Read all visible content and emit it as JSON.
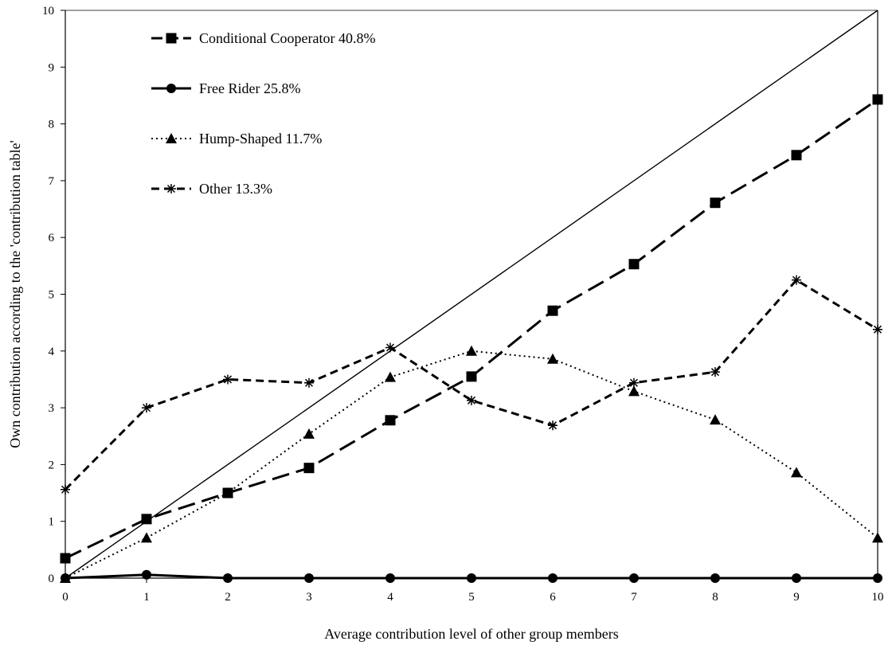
{
  "chart_data": {
    "type": "line",
    "title": "",
    "xlabel": "Average contribution level of other group members",
    "ylabel": "Own contribution according to the 'contribution table'",
    "xlim": [
      0,
      10
    ],
    "ylim": [
      0,
      10
    ],
    "x": [
      0,
      1,
      2,
      3,
      4,
      5,
      6,
      7,
      8,
      9,
      10
    ],
    "x_ticks": [
      "0",
      "1",
      "2",
      "3",
      "4",
      "5",
      "6",
      "7",
      "8",
      "9",
      "10"
    ],
    "y_ticks": [
      "0",
      "1",
      "2",
      "3",
      "4",
      "5",
      "6",
      "7",
      "8",
      "9",
      "10"
    ],
    "grid": false,
    "legend_position": "top-left",
    "reference_line": {
      "from": [
        0,
        0
      ],
      "to": [
        10,
        10
      ]
    },
    "series": [
      {
        "name": "Conditional Cooperator 40.8%",
        "values": [
          0.35,
          1.04,
          1.5,
          1.94,
          2.78,
          3.55,
          4.71,
          5.53,
          6.61,
          7.45,
          8.43
        ],
        "marker": "square",
        "line_style": "long-dash",
        "color": "#000000"
      },
      {
        "name": "Free Rider 25.8%",
        "values": [
          0,
          0.06,
          0,
          0,
          0,
          0,
          0,
          0,
          0,
          0,
          0
        ],
        "marker": "circle",
        "line_style": "solid",
        "color": "#000000"
      },
      {
        "name": "Hump-Shaped 11.7%",
        "values": [
          0,
          0.71,
          1.5,
          2.54,
          3.54,
          4.0,
          3.86,
          3.29,
          2.79,
          1.86,
          0.71
        ],
        "marker": "triangle",
        "line_style": "dotted",
        "color": "#000000"
      },
      {
        "name": "Other 13.3%",
        "values": [
          1.56,
          3.0,
          3.5,
          3.44,
          4.06,
          3.13,
          2.69,
          3.44,
          3.63,
          5.25,
          4.38
        ],
        "marker": "asterisk",
        "line_style": "short-dash",
        "color": "#000000"
      }
    ]
  }
}
